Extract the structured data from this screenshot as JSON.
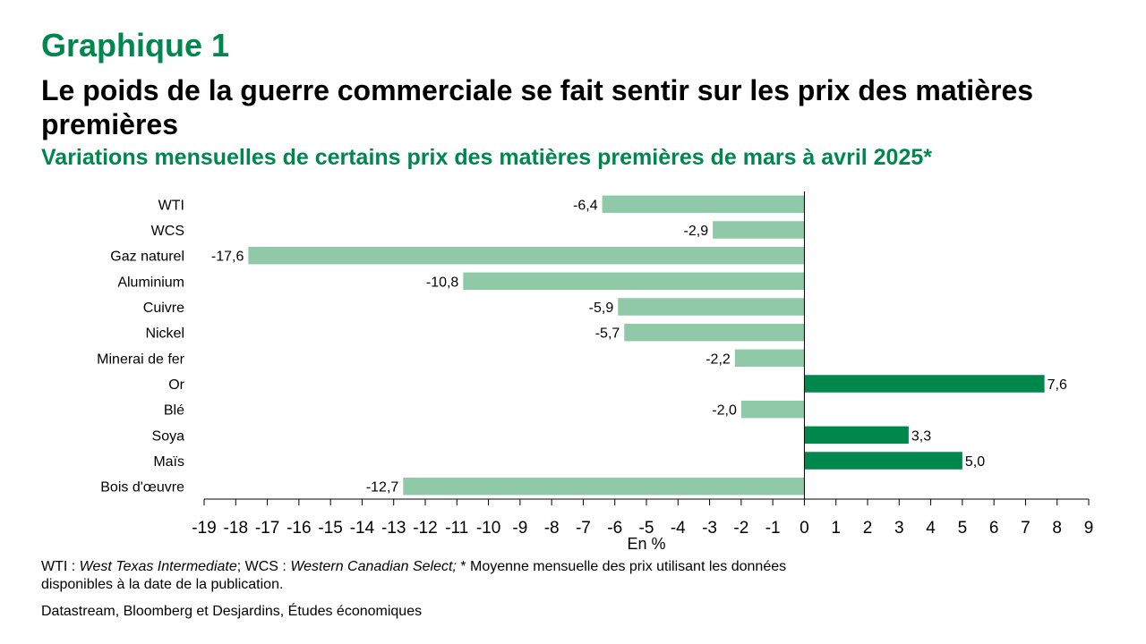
{
  "header": {
    "kicker": "Graphique 1",
    "title": "Le poids de la guerre commerciale se fait sentir sur les prix des matières premières",
    "subtitle": "Variations mensuelles de certains prix des matières premières de mars à avril 2025*"
  },
  "footer": {
    "note_abbr_wti": "WTI : ",
    "note_wti_full": "West Texas Intermediate",
    "note_sep": "; WCS : ",
    "note_wcs_full": "Western Canadian Select;",
    "note_rest": " * Moyenne mensuelle des prix utilisant les données disponibles à la date de la publication.",
    "source": "Datastream, Bloomberg et Desjardins, Études économiques"
  },
  "chart_data": {
    "type": "bar",
    "orientation": "horizontal",
    "categories": [
      "WTI",
      "WCS",
      "Gaz naturel",
      "Aluminium",
      "Cuivre",
      "Nickel",
      "Minerai de fer",
      "Or",
      "Blé",
      "Soya",
      "Maïs",
      "Bois d'œuvre"
    ],
    "values": [
      -6.4,
      -2.9,
      -17.6,
      -10.8,
      -5.9,
      -5.7,
      -2.2,
      7.6,
      -2.0,
      3.3,
      5.0,
      -12.7
    ],
    "value_labels": [
      "-6,4",
      "-2,9",
      "-17,6",
      "-10,8",
      "-5,9",
      "-5,7",
      "-2,2",
      "7,6",
      "-2,0",
      "3,3",
      "5,0",
      "-12,7"
    ],
    "xlim": [
      -19,
      9
    ],
    "xticks": [
      -19,
      -18,
      -17,
      -16,
      -15,
      -14,
      -13,
      -12,
      -11,
      -10,
      -9,
      -8,
      -7,
      -6,
      -5,
      -4,
      -3,
      -2,
      -1,
      0,
      1,
      2,
      3,
      4,
      5,
      6,
      7,
      8,
      9
    ],
    "xlabel": "En %",
    "grid": false,
    "colors": {
      "negative": "#8fc9a8",
      "positive": "#00874e"
    }
  }
}
